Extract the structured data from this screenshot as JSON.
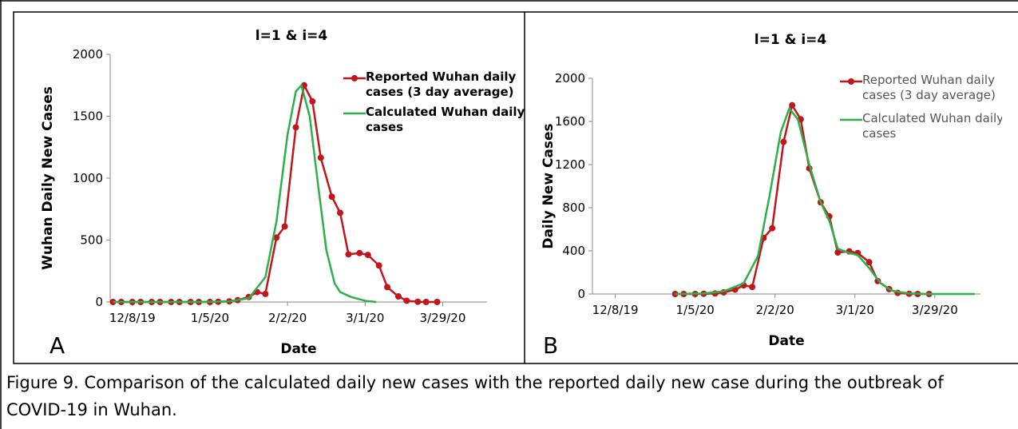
{
  "chart_data": [
    {
      "type": "line",
      "panel": "A",
      "title": "l=1 & i=4",
      "x_label": "Date",
      "y_label": "Wuhan Daily New Cases",
      "xlim": [
        "11/30/19",
        "4/14/20"
      ],
      "xticks": [
        "12/8/19",
        "1/5/20",
        "2/2/20",
        "3/1/20",
        "3/29/20"
      ],
      "ylim": [
        0,
        2000
      ],
      "yticks": [
        0,
        500,
        1000,
        1500,
        2000
      ],
      "series": [
        {
          "name": "Reported Wuhan daily cases (3 day average)",
          "color": "#c0161c",
          "markers": true,
          "x": [
            "12/1/19",
            "12/4/19",
            "12/8/19",
            "12/11/19",
            "12/15/19",
            "12/18/19",
            "12/22/19",
            "12/25/19",
            "12/29/19",
            "1/1/20",
            "1/5/20",
            "1/8/20",
            "1/12/20",
            "1/15/20",
            "1/19/20",
            "1/22/20",
            "1/25/20",
            "1/29/20",
            "2/1/20",
            "2/5/20",
            "2/8/20",
            "2/11/20",
            "2/14/20",
            "2/18/20",
            "2/21/20",
            "2/24/20",
            "2/28/20",
            "3/2/20",
            "3/6/20",
            "3/9/20",
            "3/13/20",
            "3/16/20",
            "3/20/20",
            "3/23/20",
            "3/27/20"
          ],
          "values": [
            0,
            0,
            0,
            0,
            0,
            0,
            0,
            0,
            0,
            0,
            0,
            2,
            5,
            15,
            40,
            80,
            65,
            520,
            610,
            1410,
            1750,
            1620,
            1165,
            850,
            720,
            385,
            395,
            380,
            295,
            120,
            45,
            10,
            2,
            0,
            0
          ]
        },
        {
          "name": "Calculated Wuhan daily cases",
          "color": "#2db04b",
          "markers": false,
          "x": [
            "12/1/19",
            "12/15/19",
            "1/1/20",
            "1/12/20",
            "1/19/20",
            "1/25/20",
            "1/29/20",
            "2/2/20",
            "2/5/20",
            "2/7/20",
            "2/10/20",
            "2/13/20",
            "2/16/20",
            "2/19/20",
            "2/21/20",
            "2/25/20",
            "3/1/20",
            "3/5/20"
          ],
          "values": [
            0,
            0,
            0,
            5,
            30,
            200,
            650,
            1350,
            1700,
            1750,
            1500,
            950,
            420,
            150,
            80,
            40,
            10,
            0
          ]
        }
      ]
    },
    {
      "type": "line",
      "panel": "B",
      "title": "l=1 & i=4",
      "x_label": "Date",
      "y_label": "Daily New Cases",
      "xlim": [
        "11/30/19",
        "4/14/20"
      ],
      "xticks": [
        "12/8/19",
        "1/5/20",
        "2/2/20",
        "3/1/20",
        "3/29/20"
      ],
      "ylim": [
        0,
        2000
      ],
      "yticks": [
        0,
        400,
        800,
        1200,
        1600,
        2000
      ],
      "series": [
        {
          "name": "Reported Wuhan daily cases (3 day average)",
          "color": "#c0161c",
          "markers": true,
          "x": [
            "12/29/19",
            "1/1/20",
            "1/5/20",
            "1/8/20",
            "1/12/20",
            "1/15/20",
            "1/19/20",
            "1/22/20",
            "1/25/20",
            "1/29/20",
            "2/1/20",
            "2/5/20",
            "2/8/20",
            "2/11/20",
            "2/14/20",
            "2/18/20",
            "2/21/20",
            "2/24/20",
            "2/28/20",
            "3/2/20",
            "3/6/20",
            "3/9/20",
            "3/13/20",
            "3/16/20",
            "3/20/20",
            "3/23/20",
            "3/27/20"
          ],
          "values": [
            0,
            0,
            0,
            2,
            5,
            15,
            40,
            80,
            65,
            520,
            610,
            1410,
            1750,
            1620,
            1165,
            850,
            720,
            385,
            395,
            380,
            295,
            120,
            45,
            10,
            2,
            0,
            0
          ]
        },
        {
          "name": "Calculated Wuhan daily cases",
          "color": "#2db04b",
          "markers": false,
          "x": [
            "12/29/19",
            "1/8/20",
            "1/15/20",
            "1/22/20",
            "1/27/20",
            "1/31/20",
            "2/4/20",
            "2/7/20",
            "2/10/20",
            "2/14/20",
            "2/18/20",
            "2/21/20",
            "2/24/20",
            "2/28/20",
            "3/2/20",
            "3/6/20",
            "3/10/20",
            "3/14/20",
            "3/20/20",
            "3/27/20",
            "4/5/20",
            "4/12/20"
          ],
          "values": [
            0,
            5,
            25,
            100,
            350,
            900,
            1500,
            1720,
            1620,
            1200,
            850,
            680,
            420,
            380,
            360,
            240,
            100,
            30,
            5,
            0,
            0,
            0
          ]
        }
      ]
    }
  ],
  "caption": "Figure  9. Comparison of the calculated daily new cases with the reported daily new case during the outbreak of COVID-19 in Wuhan."
}
